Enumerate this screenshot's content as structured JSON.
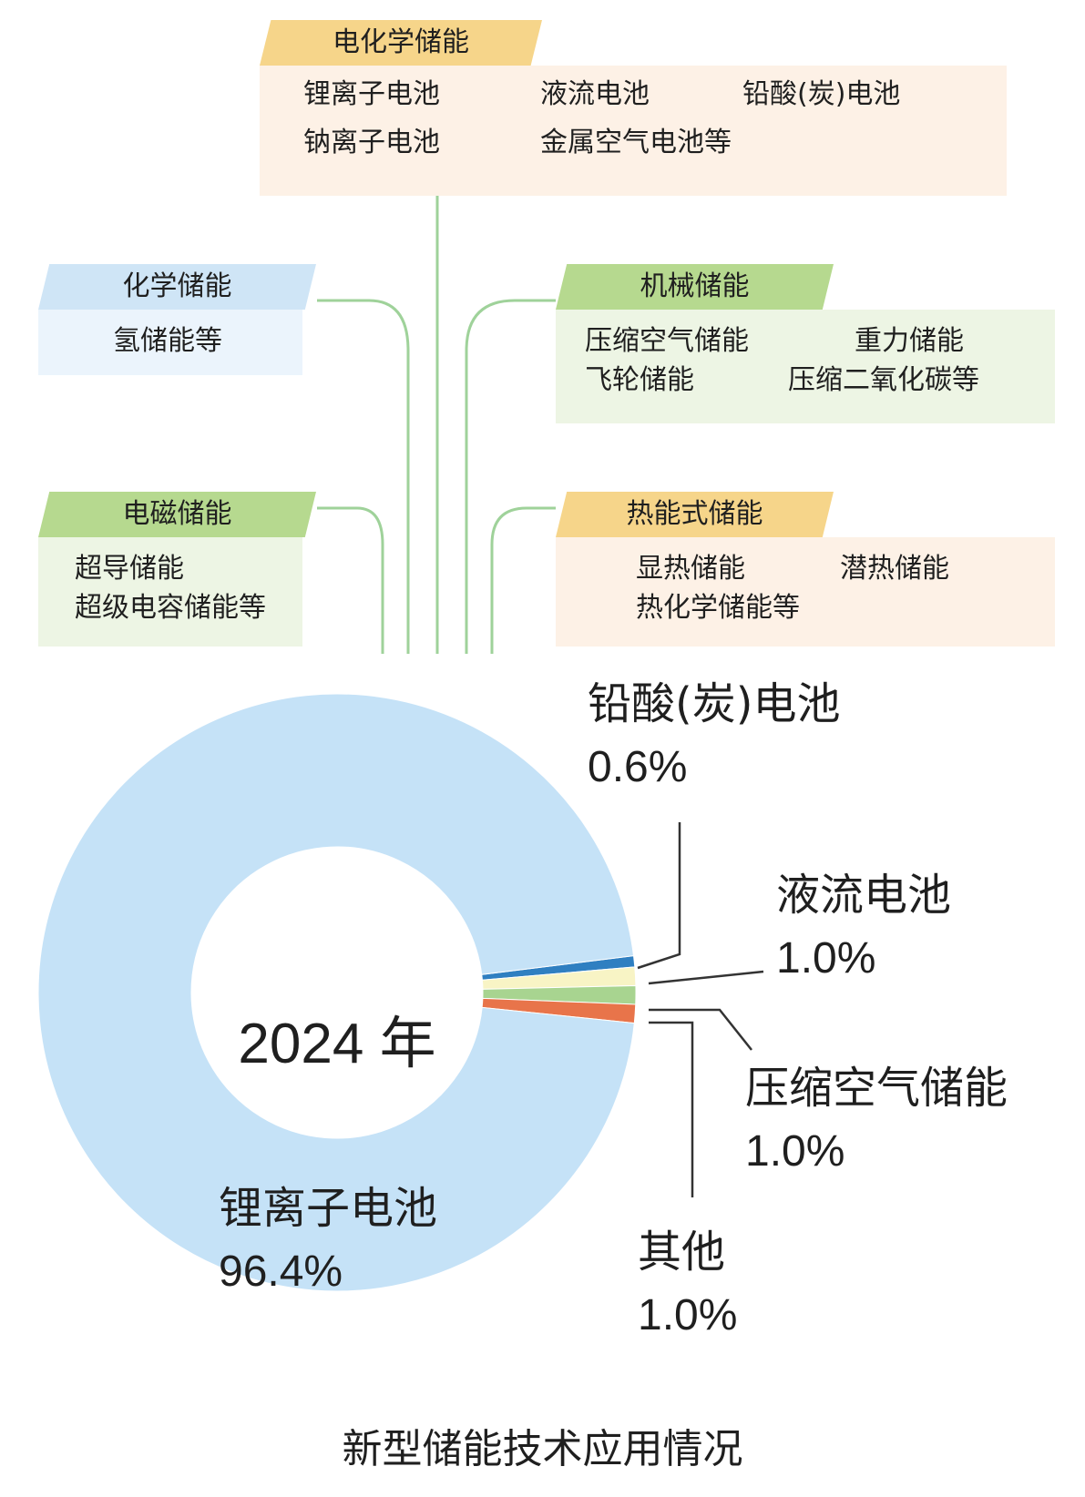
{
  "categories": {
    "electrochemical": {
      "title": "电化学储能",
      "items": [
        "锂离子电池",
        "液流电池",
        "铅酸(炭)电池",
        "钠离子电池",
        "金属空气电池等"
      ]
    },
    "chemical": {
      "title": "化学储能",
      "items": [
        "氢储能等"
      ]
    },
    "mechanical": {
      "title": "机械储能",
      "items": [
        "压缩空气储能",
        "重力储能",
        "飞轮储能",
        "压缩二氧化碳等"
      ]
    },
    "electromagnetic": {
      "title": "电磁储能",
      "items": [
        "超导储能",
        "超级电容储能等"
      ]
    },
    "thermal": {
      "title": "热能式储能",
      "items": [
        "显热储能",
        "潜热储能",
        "热化学储能等"
      ]
    }
  },
  "colors": {
    "line_green": "#9fd29a",
    "orange_tab": "#f6d58a",
    "blue_tab": "#cfe5f6",
    "green_tab": "#b6d98f"
  },
  "chart_data": {
    "type": "pie",
    "center_label": "2024 年",
    "title": "新型储能技术应用情况",
    "slices": [
      {
        "label": "锂离子电池",
        "value": 96.4,
        "display": "96.4%",
        "color": "#c5e2f7"
      },
      {
        "label": "铅酸(炭)电池",
        "value": 0.6,
        "display": "0.6%",
        "color": "#2f7fc1"
      },
      {
        "label": "液流电池",
        "value": 1.0,
        "display": "1.0%",
        "color": "#f8f4c5"
      },
      {
        "label": "压缩空气储能",
        "value": 1.0,
        "display": "1.0%",
        "color": "#a8d490"
      },
      {
        "label": "其他",
        "value": 1.0,
        "display": "1.0%",
        "color": "#e8744a"
      }
    ]
  }
}
